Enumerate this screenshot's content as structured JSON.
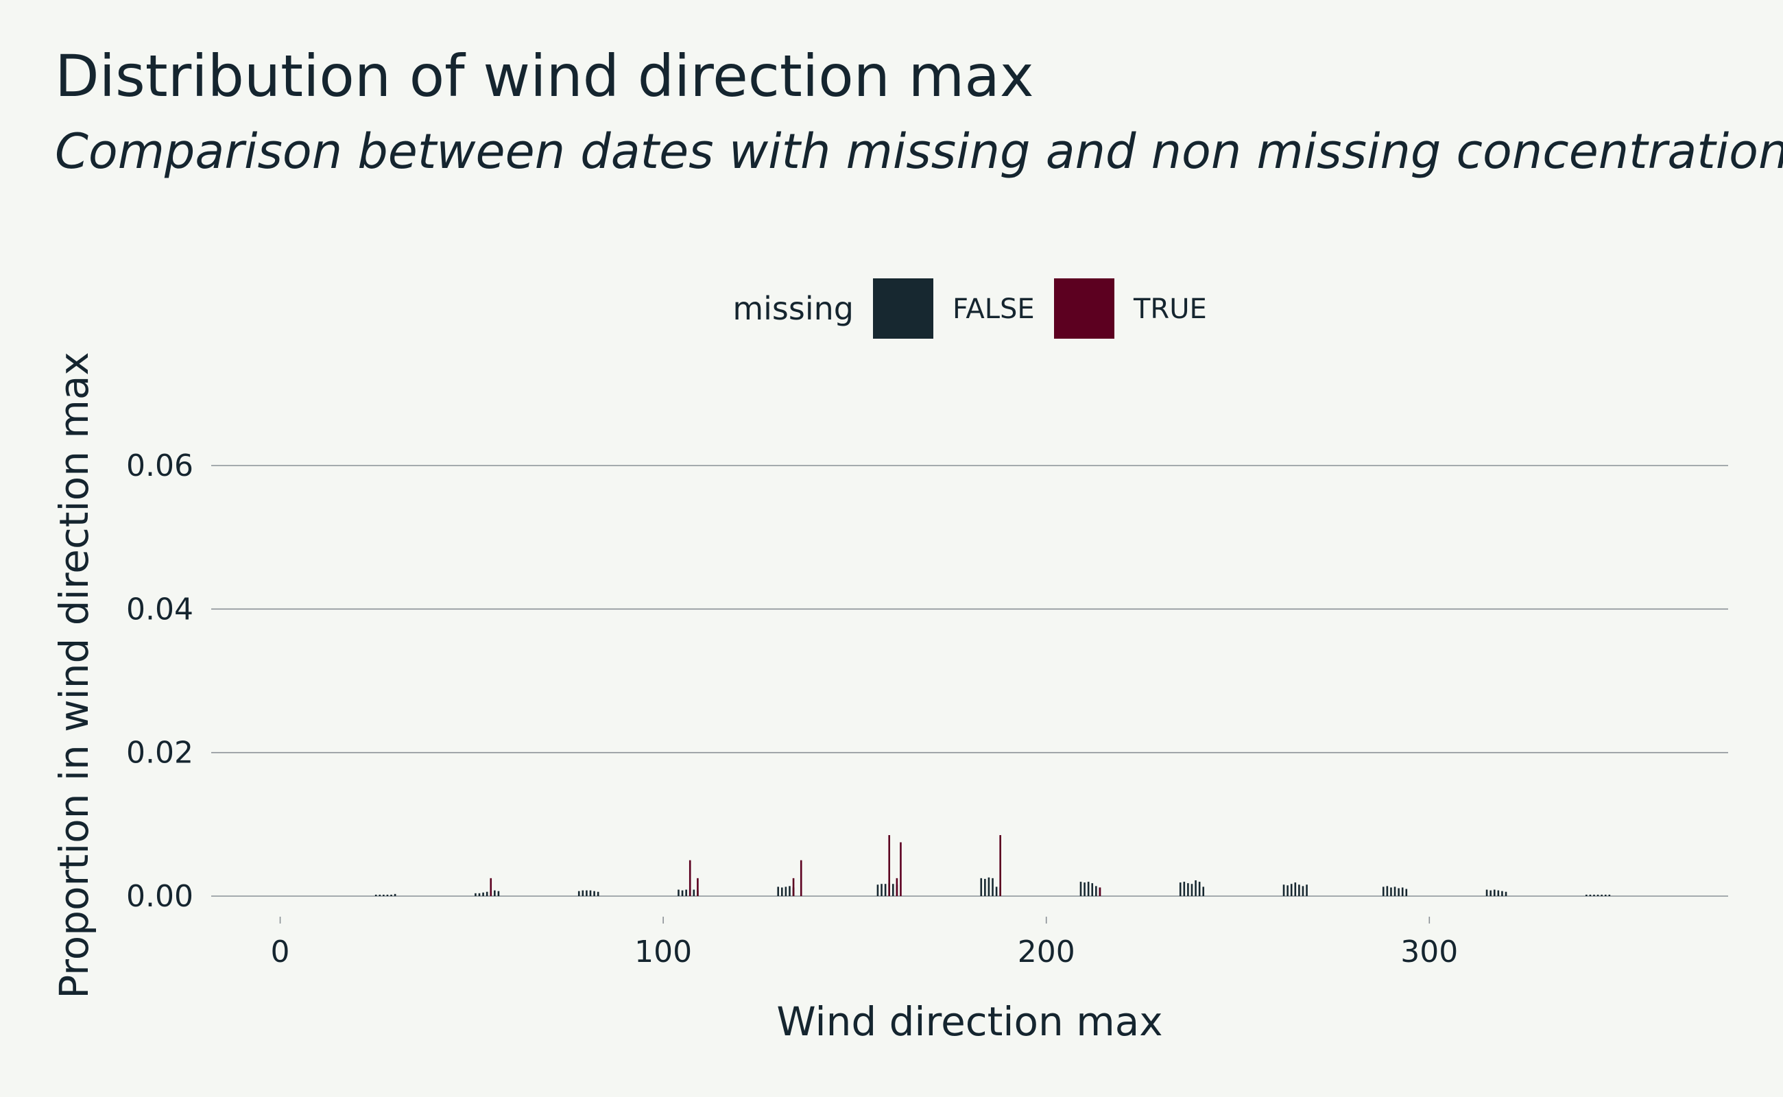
{
  "title": "Distribution of wind direction max",
  "subtitle": "Comparison between dates with missing and non missing concentrations",
  "legend": {
    "title": "missing",
    "items": [
      {
        "label": "FALSE",
        "color": "#172830"
      },
      {
        "label": "TRUE",
        "color": "#5c0020"
      }
    ]
  },
  "chart_data": {
    "type": "bar",
    "xlabel": "Wind direction max",
    "ylabel": "Proportion in wind direction max",
    "xlim": [
      -18,
      378
    ],
    "ylim": [
      0,
      0.07
    ],
    "x_ticks": [
      0,
      100,
      200,
      300
    ],
    "x_tick_labels": [
      "0",
      "100",
      "200",
      "300"
    ],
    "y_ticks": [
      0,
      0.02,
      0.04,
      0.06
    ],
    "y_tick_labels": [
      "0.00",
      "0.02",
      "0.04",
      "0.06"
    ],
    "grid": "horizontal",
    "legend_position": "top",
    "series": [
      {
        "name": "FALSE",
        "color": "#172830",
        "x": [
          25,
          26,
          27,
          28,
          29,
          30,
          51,
          52,
          53,
          54,
          55,
          56,
          57,
          78,
          79,
          80,
          81,
          82,
          83,
          104,
          105,
          106,
          107,
          108,
          109,
          130,
          131,
          132,
          133,
          134,
          156,
          157,
          158,
          159,
          160,
          161,
          183,
          184,
          185,
          186,
          187,
          188,
          209,
          210,
          211,
          212,
          213,
          214,
          235,
          236,
          237,
          238,
          239,
          240,
          241,
          262,
          263,
          264,
          265,
          266,
          267,
          268,
          288,
          289,
          290,
          291,
          292,
          293,
          294,
          315,
          316,
          317,
          318,
          319,
          320,
          341,
          342,
          343,
          344,
          345,
          346,
          347
        ],
        "values": [
          0.0002,
          0.0002,
          0.0002,
          0.0002,
          0.0002,
          0.0003,
          0.0004,
          0.0004,
          0.0005,
          0.0006,
          0.0007,
          0.0008,
          0.0007,
          0.0007,
          0.0008,
          0.0008,
          0.0008,
          0.0007,
          0.0006,
          0.0009,
          0.0008,
          0.0009,
          0.001,
          0.0009,
          0.0008,
          0.0013,
          0.0012,
          0.0013,
          0.0014,
          0.0012,
          0.0016,
          0.0017,
          0.0017,
          0.0018,
          0.0017,
          0.0016,
          0.0025,
          0.0024,
          0.0026,
          0.0025,
          0.0013,
          0.0012,
          0.002,
          0.0019,
          0.002,
          0.0018,
          0.0014,
          0.0012,
          0.0019,
          0.002,
          0.0018,
          0.0017,
          0.0022,
          0.002,
          0.0013,
          0.0016,
          0.0015,
          0.0017,
          0.0019,
          0.0016,
          0.0014,
          0.0016,
          0.0013,
          0.0014,
          0.0012,
          0.0013,
          0.0011,
          0.0012,
          0.001,
          0.0009,
          0.0008,
          0.0009,
          0.0008,
          0.0007,
          0.0006,
          0.0002,
          0.0002,
          0.0002,
          0.0002,
          0.0002,
          0.0002,
          0.0002
        ]
      },
      {
        "name": "TRUE",
        "color": "#5c0020",
        "x": [
          55,
          107,
          109,
          134,
          136,
          159,
          161,
          162,
          188,
          214
        ],
        "values": [
          0.0025,
          0.005,
          0.0025,
          0.0025,
          0.005,
          0.0085,
          0.0025,
          0.0075,
          0.0085,
          0.0012
        ]
      }
    ]
  }
}
